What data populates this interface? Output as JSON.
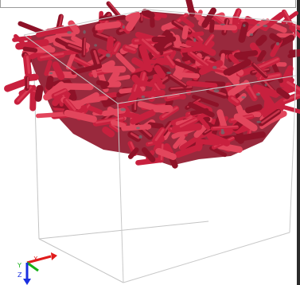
{
  "viewer": {
    "object_color": "#c8203e",
    "object_highlight": "#e2455c",
    "object_shadow": "#8e1228",
    "box_edge_color": "#c4c4c4",
    "background": "#ffffff"
  },
  "axes": {
    "icon": "axis-triad-icon",
    "labels": {
      "x": "X",
      "y": "Y",
      "z": "Z"
    },
    "colors": {
      "x": "#e01b1b",
      "y": "#18b018",
      "z": "#1a2fe0"
    }
  }
}
